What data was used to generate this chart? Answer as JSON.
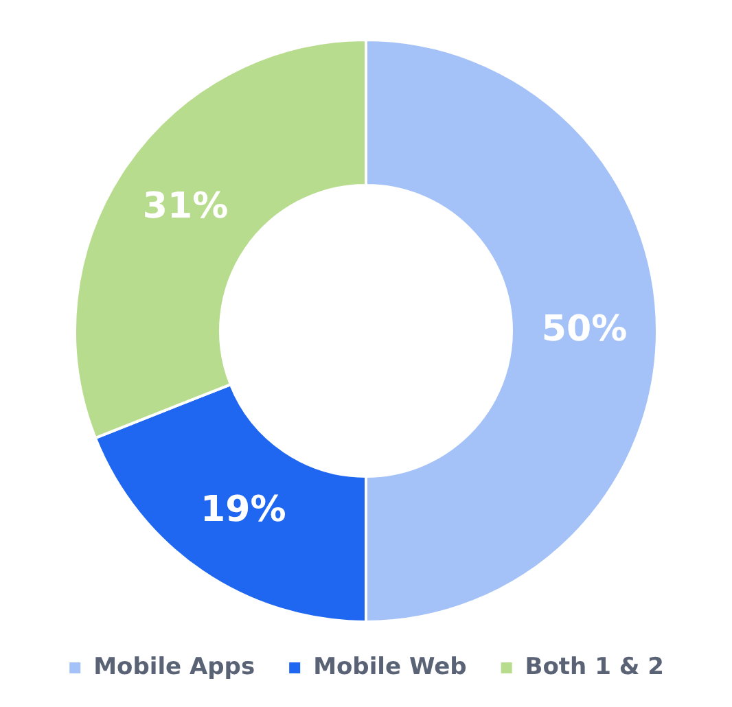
{
  "chart_data": {
    "type": "donut",
    "categories": [
      "Mobile Apps",
      "Mobile Web",
      "Both 1 & 2"
    ],
    "values": [
      50,
      19,
      31
    ],
    "colors": [
      "#a4c2f8",
      "#1f66f0",
      "#b8dc8e"
    ],
    "value_labels": [
      "50%",
      "19%",
      "31%"
    ],
    "legend": "bottom"
  }
}
